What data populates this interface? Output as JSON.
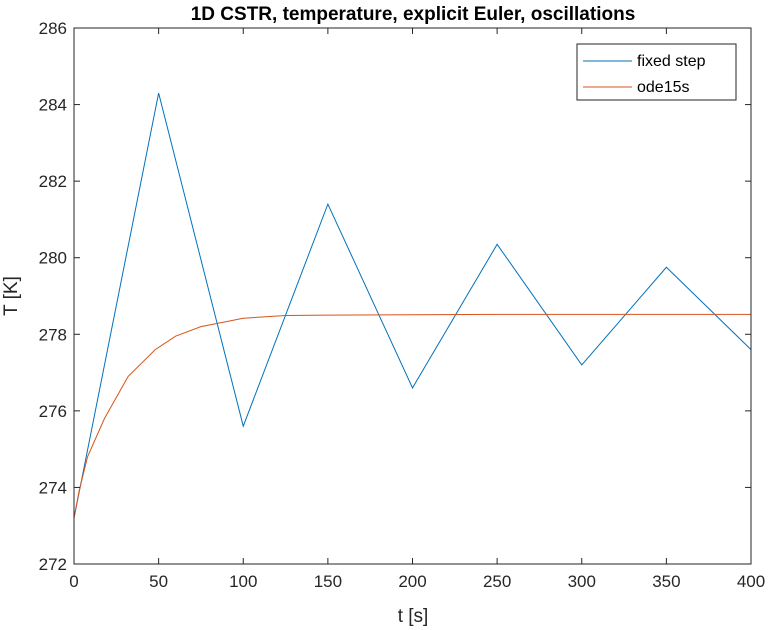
{
  "chart_data": {
    "type": "line",
    "title": "1D CSTR, temperature, explicit Euler, oscillations",
    "xlabel": "t [s]",
    "ylabel": "T [K]",
    "xlim": [
      0,
      400
    ],
    "ylim": [
      272,
      286
    ],
    "xticks": [
      0,
      50,
      100,
      150,
      200,
      250,
      300,
      350,
      400
    ],
    "yticks": [
      272,
      274,
      276,
      278,
      280,
      282,
      284,
      286
    ],
    "grid": false,
    "legend_position": "top-right",
    "series": [
      {
        "name": "fixed step",
        "color": "#0072BD",
        "x": [
          0,
          50,
          100,
          150,
          200,
          250,
          300,
          350,
          400
        ],
        "y": [
          273.2,
          284.3,
          275.6,
          281.4,
          276.6,
          280.35,
          277.2,
          279.75,
          277.6
        ]
      },
      {
        "name": "ode15s",
        "color": "#D95319",
        "x": [
          0,
          3,
          8,
          18,
          32,
          48,
          60,
          75,
          90,
          100,
          125,
          150,
          200,
          250,
          300,
          350,
          400
        ],
        "y": [
          273.2,
          273.9,
          274.8,
          275.8,
          276.9,
          277.6,
          277.95,
          278.2,
          278.33,
          278.42,
          278.49,
          278.5,
          278.51,
          278.52,
          278.52,
          278.52,
          278.52
        ]
      }
    ]
  }
}
